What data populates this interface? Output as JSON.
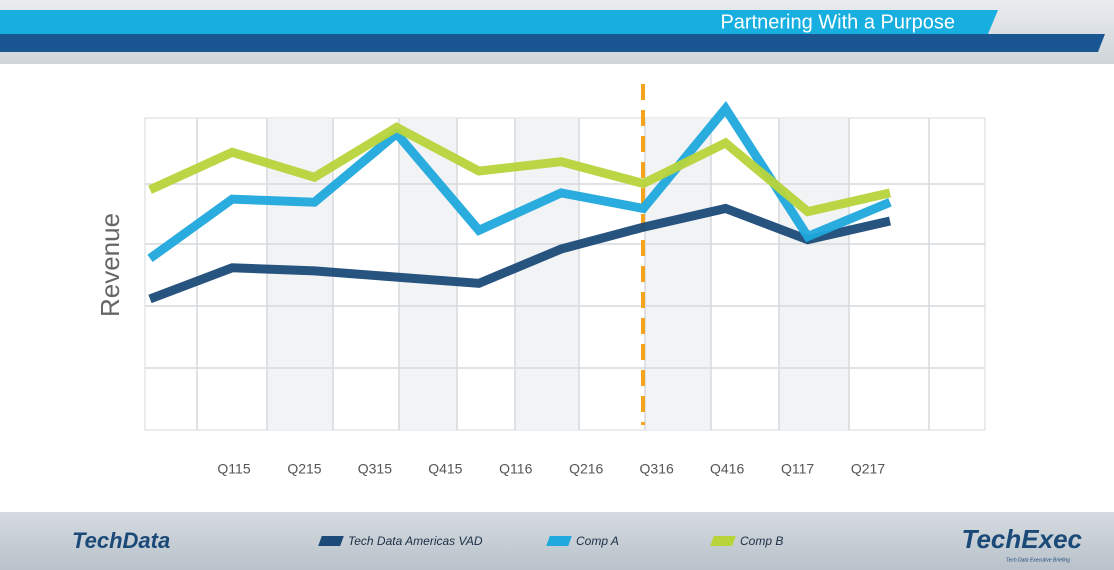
{
  "header": {
    "title": "Partnering With a Purpose"
  },
  "footer": {
    "left_logo": "TechData",
    "right_logo": "TechExec",
    "right_tagline": "Tech Data Executive Briefing"
  },
  "chart_data": {
    "type": "line",
    "y_label": "Revenue",
    "categories": [
      "Q115",
      "Q215",
      "Q315",
      "Q415",
      "Q116",
      "Q216",
      "Q316",
      "Q416",
      "Q117",
      "Q217"
    ],
    "ylim": [
      0,
      100
    ],
    "series": [
      {
        "name": "Tech Data Americas VAD",
        "color": "#1b4a78",
        "values": [
          42,
          52,
          51,
          49,
          47,
          58,
          65,
          71,
          61,
          67
        ]
      },
      {
        "name": "Comp A",
        "color": "#1fa9dc",
        "values": [
          55,
          74,
          73,
          95,
          64,
          76,
          71,
          103,
          62,
          73
        ]
      },
      {
        "name": "Comp B",
        "color": "#b7d43a",
        "values": [
          77,
          89,
          81,
          97,
          83,
          86,
          79,
          92,
          70,
          76
        ]
      }
    ]
  }
}
